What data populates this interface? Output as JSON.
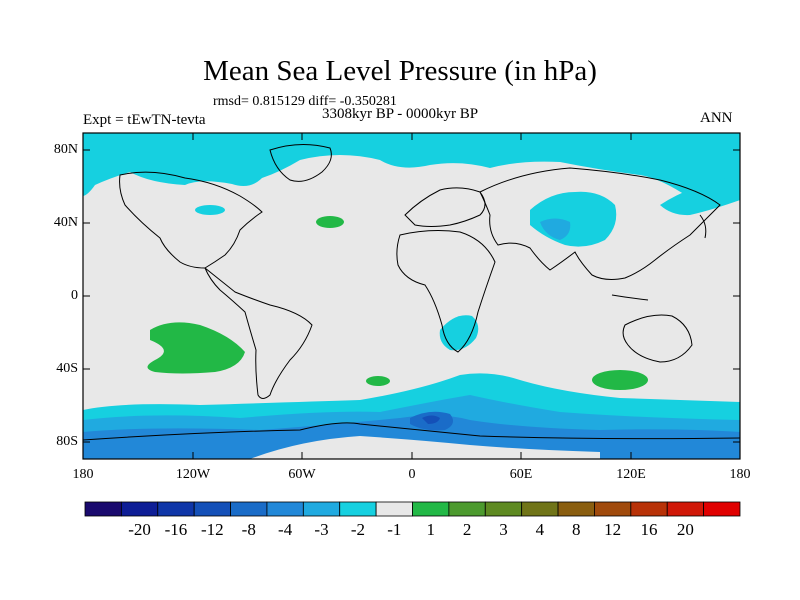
{
  "title": "Mean Sea Level Pressure (in hPa)",
  "stats_line": "rmsd= 0.815129  diff= -0.350281",
  "period": "3308kyr BP - 0000kyr BP",
  "experiment": "Expt = tEwTN-tevta",
  "season": "ANN",
  "lat_labels": [
    "80N",
    "40N",
    "0",
    "40S",
    "80S"
  ],
  "lon_labels": [
    "180",
    "120W",
    "60W",
    "0",
    "60E",
    "120E",
    "180"
  ],
  "colorbar": {
    "colors": [
      "#1a0a6e",
      "#0e1e96",
      "#0f36a8",
      "#1450b8",
      "#1a6cc8",
      "#2288d8",
      "#20aae0",
      "#16d0e0",
      "#e8e8e8",
      "#22b846",
      "#4c9a2e",
      "#5e8a22",
      "#707418",
      "#8a5e10",
      "#a04a0c",
      "#b83208",
      "#d01808",
      "#e00000"
    ],
    "labels": [
      "-20",
      "-16",
      "-12",
      "-8",
      "-4",
      "-3",
      "-2",
      "-1",
      "1",
      "2",
      "3",
      "4",
      "8",
      "12",
      "16",
      "20"
    ]
  },
  "palette": {
    "land_ocean_neutral": "#e8e8e8",
    "cyan": "#16d0e0",
    "light_blue": "#20aae0",
    "mid_blue": "#2288d8",
    "blue": "#1a6cc8",
    "dark_blue": "#1450b8",
    "green": "#22b846",
    "coast": "#000000"
  }
}
